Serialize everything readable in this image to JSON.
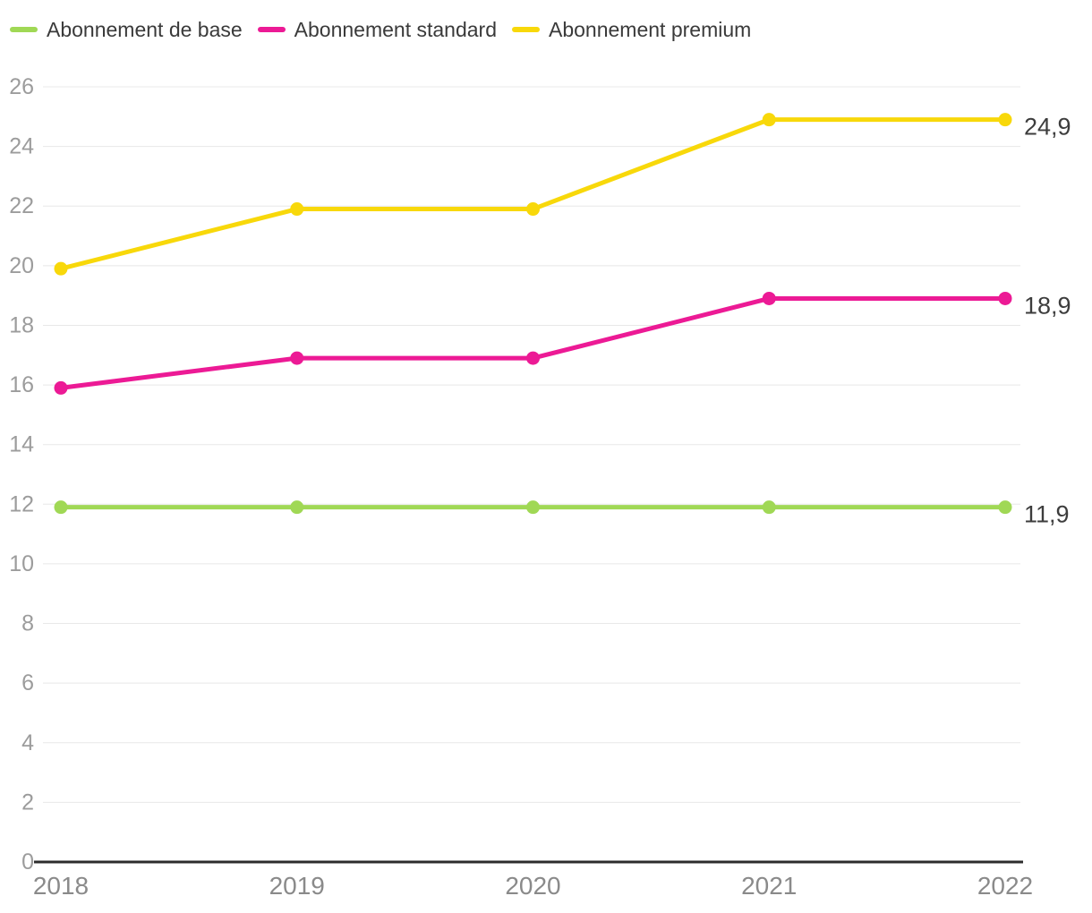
{
  "chart_data": {
    "type": "line",
    "x_categories": [
      "2018",
      "2019",
      "2020",
      "2021",
      "2022"
    ],
    "series": [
      {
        "name": "Abonnement de base",
        "color": "#a0d855",
        "values": [
          11.9,
          11.9,
          11.9,
          11.9,
          11.9
        ],
        "end_label": "11,9"
      },
      {
        "name": "Abonnement standard",
        "color": "#ec1a95",
        "values": [
          15.9,
          16.9,
          16.9,
          18.9,
          18.9
        ],
        "end_label": "18,9"
      },
      {
        "name": "Abonnement premium",
        "color": "#f8d80a",
        "values": [
          19.9,
          21.9,
          21.9,
          24.9,
          24.9
        ],
        "end_label": "24,9"
      }
    ],
    "title": "",
    "xlabel": "",
    "ylabel": "",
    "ylim": [
      0,
      26
    ],
    "ytick_step": 2,
    "grid": true,
    "legend_position": "top",
    "decimal_separator": ",",
    "colors": {
      "gridline": "#e8e8e8",
      "axis_line": "#2d2d2d",
      "y_tick_text": "#9c9c9c",
      "x_tick_text": "#8a8a8a",
      "end_label_text": "#3d3d3d",
      "legend_text": "#3a3a3a"
    }
  }
}
